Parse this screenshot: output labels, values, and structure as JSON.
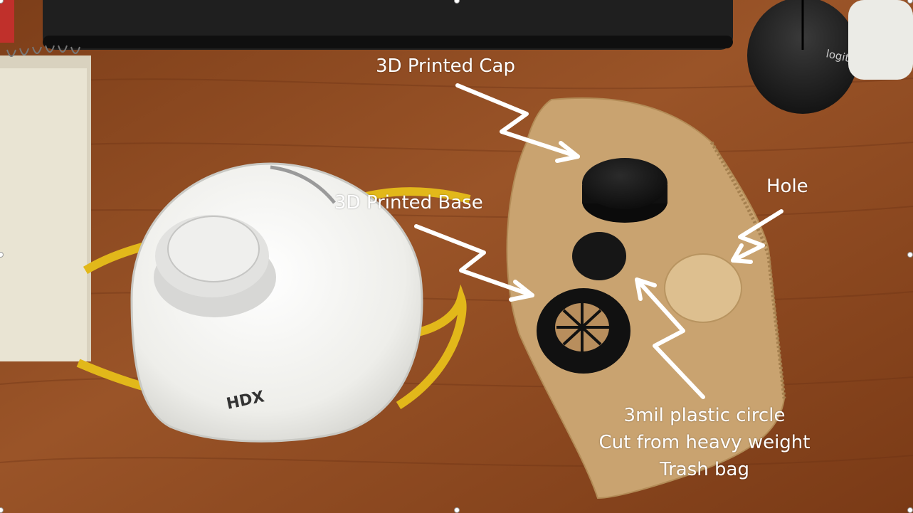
{
  "photo": {
    "colors": {
      "table": "#8a4a22",
      "table_dark": "#6b3417",
      "filter_paper": "#caa676",
      "mask": "#f1f1ef",
      "strap": "#e2b81a",
      "printed_parts": "#171717",
      "annotation": "#ffffff"
    },
    "objects": {
      "mask_brand": "HDX",
      "mouse_brand": "logitech"
    }
  },
  "annotations": {
    "cap_label": "3D Printed Cap",
    "base_label": "3D Printed Base",
    "hole_label": "Hole",
    "plastic_label_lines": [
      "3mil plastic circle",
      "Cut from heavy weight",
      "Trash bag"
    ]
  }
}
